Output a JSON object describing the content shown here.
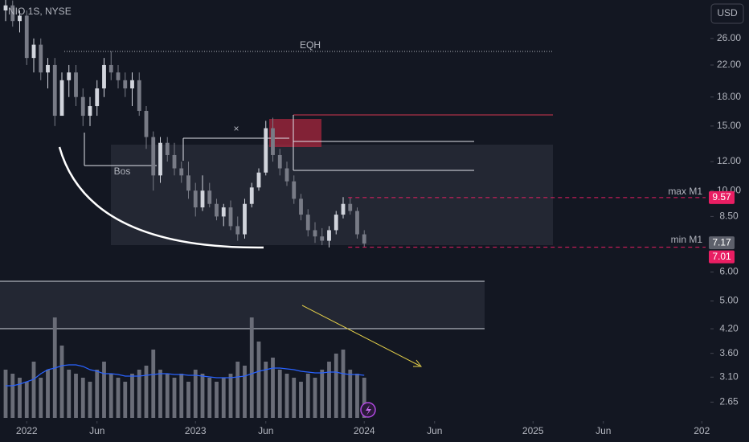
{
  "chart_data": {
    "type": "candlestick",
    "title": "NIO 1S, NYSE",
    "currency": "USD",
    "log_scale": true,
    "x": [
      -1.5,
      -1,
      -0.5,
      0,
      0.5,
      1,
      1.5,
      2,
      2.5,
      3,
      3.5,
      4,
      4.5,
      5,
      5.5,
      6,
      6.5,
      7,
      7.5,
      8,
      8.5,
      9,
      9.5,
      10,
      10.5,
      11,
      11.5,
      12,
      12.5,
      13,
      13.5,
      14,
      14.5,
      15,
      15.5,
      16,
      16.5,
      17,
      17.5,
      18,
      18.5,
      19,
      19.5,
      20,
      20.5,
      21,
      21.5,
      22,
      22.5,
      23,
      23.5,
      24
    ],
    "open": [
      31,
      32,
      29,
      30,
      23,
      25,
      21,
      22,
      16,
      20,
      21,
      18,
      16,
      17,
      19,
      22,
      21,
      20,
      19,
      20,
      16.5,
      14,
      11,
      13.5,
      12.5,
      11.5,
      11,
      10,
      9,
      10,
      9.2,
      8.5,
      9,
      8,
      7.6,
      9.2,
      10.2,
      11.2,
      14.8,
      12.5,
      11.5,
      10.6,
      9.5,
      8.6,
      7.8,
      7.5,
      7.3,
      7.8,
      8.6,
      9.2,
      8.8,
      7.6
    ],
    "high": [
      34,
      33,
      31,
      31,
      26,
      26,
      23,
      23,
      21,
      22,
      22,
      19,
      18,
      20,
      23,
      24,
      22,
      21,
      21,
      21,
      17,
      14.5,
      14,
      14,
      13.5,
      12,
      12,
      10.5,
      11,
      10.5,
      9.5,
      9.2,
      9.4,
      8.5,
      9.5,
      10.5,
      11.5,
      15.5,
      15.8,
      13,
      12,
      11,
      9.8,
      8.9,
      8.2,
      7.9,
      8,
      8.8,
      9.6,
      9.57,
      9,
      7.8
    ],
    "low": [
      29,
      28,
      27,
      22,
      21,
      20,
      19,
      15,
      16,
      18,
      17,
      15,
      15,
      16,
      18,
      20,
      19,
      18,
      17,
      16,
      13,
      10,
      10.5,
      12,
      11,
      10.5,
      9.5,
      8.5,
      8.8,
      9,
      8.3,
      8,
      7.8,
      7.3,
      7.4,
      9,
      10,
      11,
      12,
      11,
      10.3,
      9.2,
      8.3,
      7.5,
      7.2,
      7.1,
      7,
      7.6,
      8.4,
      8.6,
      7.4,
      7.01
    ],
    "close": [
      32,
      29,
      30,
      23,
      25,
      21,
      22,
      16,
      20,
      21,
      18,
      16,
      17,
      19,
      22,
      21,
      20,
      19,
      20,
      16.5,
      14,
      11,
      13.5,
      12.5,
      11.5,
      11,
      10,
      9,
      10,
      9.2,
      8.5,
      9,
      8,
      7.6,
      9.2,
      10.2,
      11.2,
      14.8,
      12.5,
      11.5,
      10.6,
      9.5,
      8.6,
      7.8,
      7.5,
      7.3,
      7.8,
      8.6,
      9.2,
      8.8,
      7.6,
      7.17
    ],
    "volume": [
      60,
      55,
      50,
      45,
      70,
      50,
      60,
      125,
      90,
      60,
      55,
      50,
      45,
      60,
      70,
      55,
      50,
      45,
      55,
      60,
      65,
      85,
      60,
      55,
      50,
      55,
      45,
      60,
      55,
      50,
      45,
      50,
      55,
      70,
      65,
      125,
      95,
      70,
      75,
      60,
      55,
      50,
      45,
      55,
      50,
      60,
      70,
      80,
      85,
      60,
      55,
      50
    ],
    "volume_ma": [
      40,
      40,
      42,
      45,
      48,
      55,
      60,
      62,
      65,
      66,
      66,
      64,
      60,
      58,
      55,
      55,
      54,
      52,
      52,
      52,
      53,
      54,
      55,
      55,
      54,
      54,
      53,
      53,
      52,
      51,
      50,
      50,
      50,
      51,
      52,
      55,
      58,
      60,
      62,
      62,
      61,
      60,
      58,
      57,
      56,
      56,
      57,
      57,
      55,
      54,
      54,
      53
    ],
    "volume_lim": [
      0,
      130
    ],
    "up_color": "#d1d4dc",
    "down_color": "#787b86",
    "volume_color": "#6a6d78",
    "volume_ma_color": "#2962ff",
    "xlim": [
      -1.9,
      48.5
    ],
    "xticks": [
      {
        "value": 0,
        "label": "2022"
      },
      {
        "value": 5,
        "label": "Jun"
      },
      {
        "value": 12,
        "label": "2023"
      },
      {
        "value": 17,
        "label": "Jun"
      },
      {
        "value": 24,
        "label": "2024"
      },
      {
        "value": 29,
        "label": "Jun"
      },
      {
        "value": 36,
        "label": "2025"
      },
      {
        "value": 41,
        "label": "Jun"
      },
      {
        "value": 48,
        "label": "202"
      }
    ],
    "ylim": [
      2.4,
      33.1
    ],
    "yticks": [
      {
        "value": 26,
        "label": "26.00"
      },
      {
        "value": 22,
        "label": "22.00"
      },
      {
        "value": 18,
        "label": "18.00"
      },
      {
        "value": 15,
        "label": "15.00"
      },
      {
        "value": 12,
        "label": "12.00"
      },
      {
        "value": 10,
        "label": "10.00"
      },
      {
        "value": 8.5,
        "label": "8.50"
      },
      {
        "value": 6,
        "label": "6.00"
      },
      {
        "value": 5,
        "label": "5.00"
      },
      {
        "value": 4.2,
        "label": "4.20"
      },
      {
        "value": 3.6,
        "label": "3.60"
      },
      {
        "value": 3.1,
        "label": "3.10"
      },
      {
        "value": 2.65,
        "label": "2.65"
      }
    ],
    "last_price": 7.17,
    "max_m1": 9.57,
    "min_m1": 7.01,
    "annotations": {
      "eqh": "EQH",
      "bos": "Bos",
      "cross": "×",
      "max": "max M1",
      "min": "min M1"
    }
  }
}
